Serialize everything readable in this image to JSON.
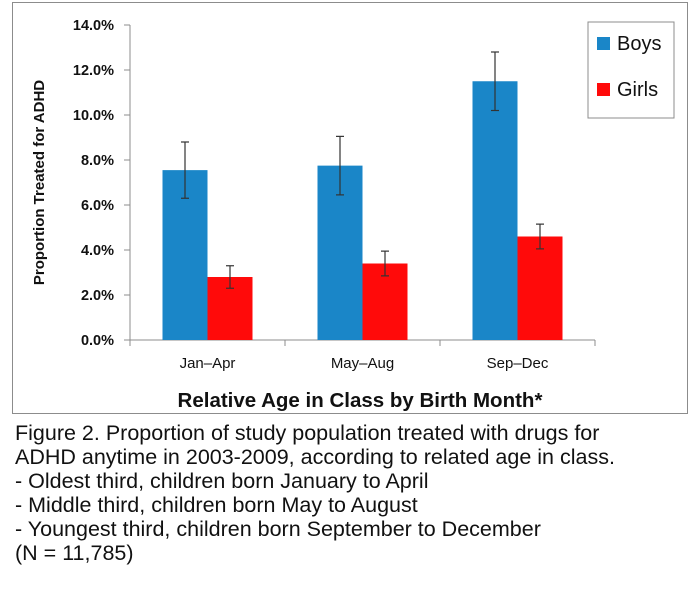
{
  "chart_data": {
    "type": "bar",
    "categories": [
      "Jan–Apr",
      "May–Aug",
      "Sep–Dec"
    ],
    "series": [
      {
        "name": "Boys",
        "values": [
          7.55,
          7.75,
          11.5
        ],
        "error": [
          1.25,
          1.3,
          1.3
        ],
        "color": "#1a86c8"
      },
      {
        "name": "Girls",
        "values": [
          2.8,
          3.4,
          4.6
        ],
        "error": [
          0.5,
          0.55,
          0.55
        ],
        "color": "#ff0a0a"
      }
    ],
    "xlabel": "Relative Age in Class by Birth Month*",
    "ylabel": "Proportion Treated for ADHD",
    "ylim": [
      0,
      14
    ],
    "yticks": [
      "0.0%",
      "2.0%",
      "4.0%",
      "6.0%",
      "8.0%",
      "10.0%",
      "12.0%",
      "14.0%"
    ],
    "legend_position": "top-right",
    "grid": false
  },
  "caption": {
    "line1": "Figure 2. Proportion of study population treated with drugs for",
    "line2": "ADHD anytime in 2003-2009, according to related age in class.",
    "line3": "- Oldest third, children born January to April",
    "line4": "- Middle third, children born May to August",
    "line5": "- Youngest third, children born September to December",
    "line6": "(N = 11,785)"
  }
}
